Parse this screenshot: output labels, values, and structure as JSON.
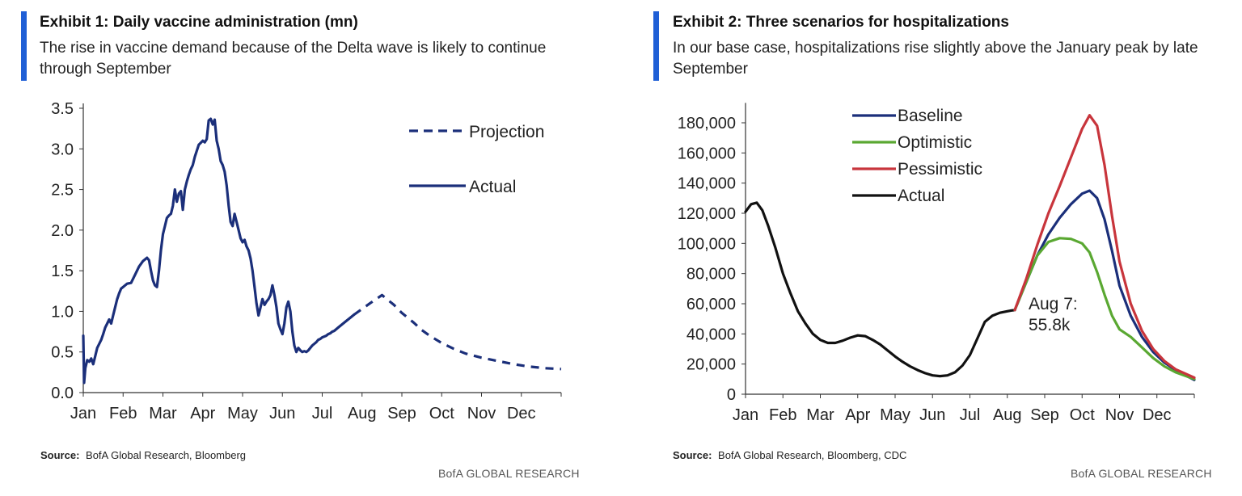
{
  "colors": {
    "accent": "#1f5fd6",
    "navy": "#1b2f7a",
    "green": "#5aa832",
    "red": "#c8353c",
    "black": "#111111"
  },
  "brand": "BofA GLOBAL RESEARCH",
  "exhibit1": {
    "title": "Exhibit 1: Daily vaccine administration (mn)",
    "subtitle": "The rise in vaccine demand because of the Delta wave is likely to continue through September",
    "source_label": "Source:",
    "source_text": "BofA Global Research, Bloomberg"
  },
  "exhibit2": {
    "title": "Exhibit 2: Three scenarios for hospitalizations",
    "subtitle": "In our base case, hospitalizations rise slightly above the January peak by late September",
    "source_label": "Source:",
    "source_text": "BofA Global Research, Bloomberg, CDC"
  },
  "chart_data": [
    {
      "type": "line",
      "title": "Exhibit 1: Daily vaccine administration (mn)",
      "ylabel": "mn",
      "ylim": [
        0,
        3.5
      ],
      "xlim": [
        0,
        12
      ],
      "y_ticks": [
        0.0,
        0.5,
        1.0,
        1.5,
        2.0,
        2.5,
        3.0,
        3.5
      ],
      "y_tick_labels": [
        "0.0",
        "0.5",
        "1.0",
        "1.5",
        "2.0",
        "2.5",
        "3.0",
        "3.5"
      ],
      "x_tick_labels": [
        "Jan",
        "Feb",
        "Mar",
        "Apr",
        "May",
        "Jun",
        "Jul",
        "Aug",
        "Sep",
        "Oct",
        "Nov",
        "Dec"
      ],
      "legend": [
        "Projection",
        "Actual"
      ],
      "legend_position": "top-right",
      "series": [
        {
          "name": "Actual",
          "style": "solid",
          "color": "#1b2f7a",
          "x": [
            0,
            0.02,
            0.05,
            0.1,
            0.15,
            0.2,
            0.25,
            0.3,
            0.35,
            0.4,
            0.45,
            0.5,
            0.55,
            0.6,
            0.65,
            0.7,
            0.75,
            0.8,
            0.85,
            0.9,
            0.95,
            1.0,
            1.1,
            1.2,
            1.3,
            1.4,
            1.5,
            1.6,
            1.65,
            1.7,
            1.75,
            1.8,
            1.85,
            1.9,
            1.95,
            2.0,
            2.05,
            2.1,
            2.15,
            2.2,
            2.25,
            2.3,
            2.35,
            2.4,
            2.45,
            2.5,
            2.55,
            2.6,
            2.65,
            2.7,
            2.75,
            2.8,
            2.9,
            3.0,
            3.05,
            3.1,
            3.15,
            3.2,
            3.25,
            3.3,
            3.35,
            3.4,
            3.45,
            3.5,
            3.55,
            3.6,
            3.65,
            3.7,
            3.75,
            3.8,
            3.85,
            3.9,
            3.95,
            4.0,
            4.05,
            4.1,
            4.15,
            4.2,
            4.25,
            4.3,
            4.35,
            4.4,
            4.45,
            4.5,
            4.55,
            4.6,
            4.65,
            4.7,
            4.75,
            4.8,
            4.85,
            4.9,
            4.95,
            5.0,
            5.05,
            5.1,
            5.15,
            5.2,
            5.25,
            5.3,
            5.35,
            5.4,
            5.45,
            5.5,
            5.55,
            5.6,
            5.65,
            5.7,
            5.75,
            5.8,
            5.85,
            5.9,
            5.95,
            6.0,
            6.05,
            6.1,
            6.15,
            6.2,
            6.25,
            6.3,
            6.35,
            6.4,
            6.5,
            6.6,
            6.7,
            6.8
          ],
          "y": [
            0.7,
            0.12,
            0.3,
            0.4,
            0.38,
            0.42,
            0.35,
            0.45,
            0.55,
            0.6,
            0.65,
            0.72,
            0.8,
            0.85,
            0.9,
            0.85,
            0.95,
            1.05,
            1.15,
            1.22,
            1.28,
            1.3,
            1.34,
            1.35,
            1.45,
            1.55,
            1.62,
            1.66,
            1.63,
            1.5,
            1.38,
            1.32,
            1.3,
            1.5,
            1.75,
            1.95,
            2.05,
            2.15,
            2.18,
            2.2,
            2.3,
            2.5,
            2.35,
            2.45,
            2.48,
            2.25,
            2.5,
            2.6,
            2.68,
            2.75,
            2.8,
            2.9,
            3.05,
            3.1,
            3.08,
            3.12,
            3.35,
            3.37,
            3.3,
            3.36,
            3.1,
            3.0,
            2.85,
            2.8,
            2.72,
            2.55,
            2.3,
            2.1,
            2.05,
            2.2,
            2.1,
            2.0,
            1.9,
            1.85,
            1.88,
            1.8,
            1.75,
            1.65,
            1.5,
            1.3,
            1.1,
            0.95,
            1.05,
            1.15,
            1.08,
            1.12,
            1.15,
            1.2,
            1.32,
            1.2,
            1.05,
            0.85,
            0.78,
            0.72,
            0.85,
            1.05,
            1.12,
            1.0,
            0.75,
            0.58,
            0.5,
            0.55,
            0.52,
            0.5,
            0.51,
            0.5,
            0.52,
            0.55,
            0.58,
            0.6,
            0.62,
            0.65,
            0.66,
            0.68,
            0.69,
            0.7,
            0.72,
            0.73,
            0.75,
            0.76,
            0.78,
            0.8,
            0.84,
            0.88,
            0.92,
            0.96
          ]
        },
        {
          "name": "Projection",
          "style": "dashed",
          "color": "#1b2f7a",
          "x": [
            6.8,
            7.0,
            7.2,
            7.5,
            7.8,
            8.0,
            8.3,
            8.5,
            8.7,
            9.0,
            9.3,
            9.6,
            10.0,
            10.4,
            10.8,
            11.2,
            11.6,
            12.0
          ],
          "y": [
            0.96,
            1.03,
            1.1,
            1.2,
            1.08,
            0.98,
            0.86,
            0.77,
            0.7,
            0.61,
            0.54,
            0.48,
            0.43,
            0.39,
            0.35,
            0.32,
            0.3,
            0.29
          ]
        }
      ]
    },
    {
      "type": "line",
      "title": "Exhibit 2: Three scenarios for hospitalizations",
      "ylim": [
        0,
        190000
      ],
      "xlim": [
        0,
        12
      ],
      "y_ticks": [
        0,
        20000,
        40000,
        60000,
        80000,
        100000,
        120000,
        140000,
        160000,
        180000
      ],
      "y_tick_labels": [
        "0",
        "20,000",
        "40,000",
        "60,000",
        "80,000",
        "100,000",
        "120,000",
        "140,000",
        "160,000",
        "180,000"
      ],
      "x_tick_labels": [
        "Jan",
        "Feb",
        "Mar",
        "Apr",
        "May",
        "Jun",
        "Jul",
        "Aug",
        "Sep",
        "Oct",
        "Nov",
        "Dec"
      ],
      "legend": [
        "Baseline",
        "Optimistic",
        "Pessimistic",
        "Actual"
      ],
      "legend_position": "top-center",
      "annotation": {
        "line1": "Aug 7:",
        "line2": "55.8k",
        "x": 7.2,
        "y": 55800
      },
      "series": [
        {
          "name": "Actual",
          "color": "#111111",
          "x": [
            0,
            0.15,
            0.3,
            0.45,
            0.6,
            0.8,
            1.0,
            1.2,
            1.4,
            1.6,
            1.8,
            2.0,
            2.2,
            2.4,
            2.6,
            2.8,
            3.0,
            3.2,
            3.4,
            3.6,
            3.8,
            4.0,
            4.2,
            4.4,
            4.6,
            4.8,
            5.0,
            5.2,
            5.4,
            5.6,
            5.8,
            6.0,
            6.2,
            6.4,
            6.6,
            6.8,
            7.0,
            7.1,
            7.2
          ],
          "y": [
            121000,
            126000,
            127000,
            122000,
            112000,
            97000,
            80000,
            67000,
            55000,
            47000,
            40000,
            36000,
            34000,
            34000,
            35500,
            37500,
            39000,
            38500,
            36000,
            33000,
            29000,
            25000,
            21500,
            18500,
            16000,
            14000,
            12500,
            12000,
            12500,
            14500,
            19000,
            26000,
            37000,
            48000,
            52000,
            54000,
            55000,
            55500,
            55800
          ]
        },
        {
          "name": "Baseline",
          "color": "#1b2f7a",
          "x": [
            7.2,
            7.5,
            7.8,
            8.1,
            8.4,
            8.7,
            9.0,
            9.2,
            9.4,
            9.6,
            9.8,
            10.0,
            10.3,
            10.6,
            10.9,
            11.2,
            11.5,
            12.0
          ],
          "y": [
            55800,
            74000,
            92000,
            106000,
            117000,
            126000,
            133000,
            135000,
            130000,
            116000,
            95000,
            72000,
            52000,
            38000,
            28000,
            21000,
            16000,
            9500
          ]
        },
        {
          "name": "Optimistic",
          "color": "#5aa832",
          "x": [
            7.2,
            7.5,
            7.8,
            8.1,
            8.4,
            8.7,
            9.0,
            9.2,
            9.4,
            9.6,
            9.8,
            10.0,
            10.3,
            10.6,
            10.9,
            11.2,
            11.5,
            12.0
          ],
          "y": [
            55800,
            74000,
            92000,
            101000,
            103500,
            103000,
            100000,
            94000,
            81000,
            66000,
            52000,
            43000,
            38000,
            31000,
            24000,
            18500,
            14500,
            10000
          ]
        },
        {
          "name": "Pessimistic",
          "color": "#c8353c",
          "x": [
            7.2,
            7.5,
            7.8,
            8.1,
            8.4,
            8.7,
            9.0,
            9.2,
            9.4,
            9.6,
            9.8,
            10.0,
            10.3,
            10.6,
            10.9,
            11.2,
            11.5,
            12.0
          ],
          "y": [
            55800,
            76000,
            99000,
            120000,
            138000,
            157000,
            176000,
            185000,
            178000,
            152000,
            118000,
            88000,
            60000,
            42000,
            30000,
            22000,
            16500,
            11000
          ]
        }
      ]
    }
  ]
}
